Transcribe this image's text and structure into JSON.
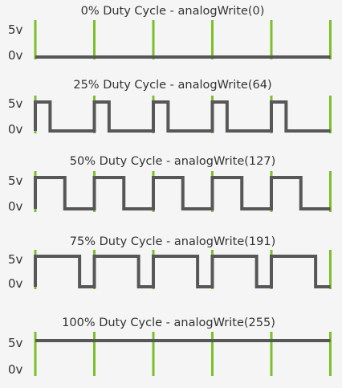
{
  "colors": {
    "background": "#f5f5f5",
    "signal": "#575757",
    "marker": "#7cbf2a",
    "text": "#333333"
  },
  "axis_labels": {
    "high": "5v",
    "low": "0v"
  },
  "periods_shown": 5,
  "panels": [
    {
      "title": "0% Duty Cycle - analogWrite(0)",
      "duty_percent": 0,
      "analog_value": 0
    },
    {
      "title": "25% Duty Cycle - analogWrite(64)",
      "duty_percent": 25,
      "analog_value": 64
    },
    {
      "title": "50% Duty Cycle - analogWrite(127)",
      "duty_percent": 50,
      "analog_value": 127
    },
    {
      "title": "75% Duty Cycle - analogWrite(191)",
      "duty_percent": 75,
      "analog_value": 191
    },
    {
      "title": "100% Duty Cycle - analogWrite(255)",
      "duty_percent": 100,
      "analog_value": 255
    }
  ]
}
